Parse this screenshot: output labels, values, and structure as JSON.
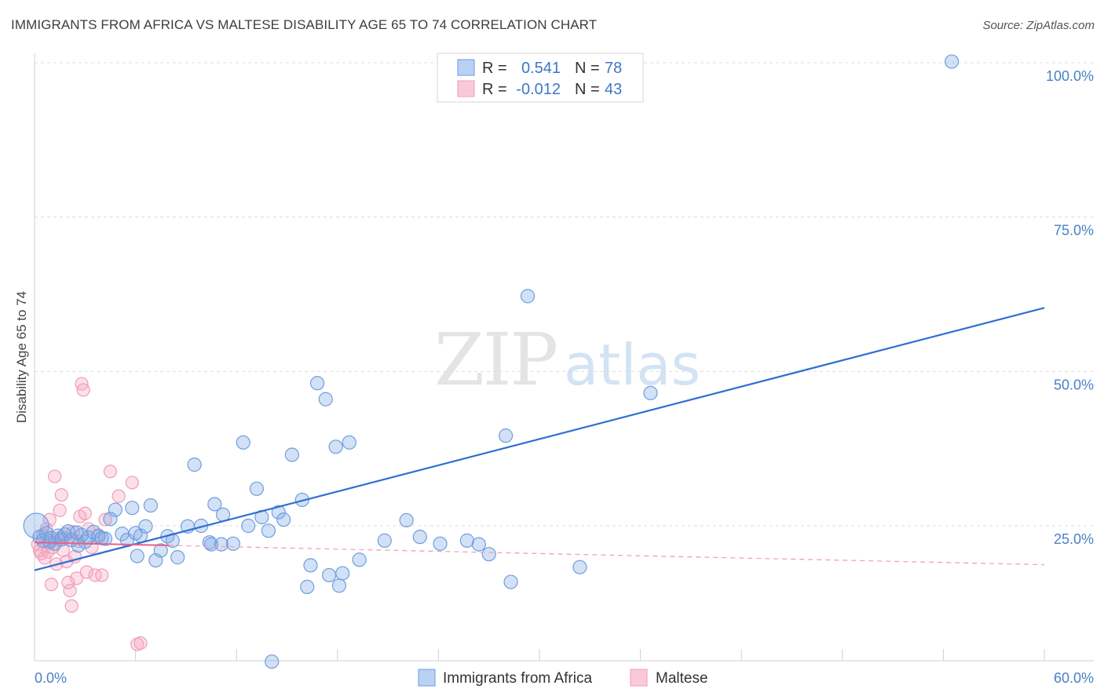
{
  "title": "IMMIGRANTS FROM AFRICA VS MALTESE DISABILITY AGE 65 TO 74 CORRELATION CHART",
  "source": "Source: ZipAtlas.com",
  "watermark": {
    "zip": "ZIP",
    "atlas": "atlas"
  },
  "colors": {
    "blue": "#7fa8e6",
    "blue_line": "#2f6fd1",
    "pink": "#f4a7c0",
    "pink_line": "#e8608a",
    "grid": "#d9d9d9"
  },
  "legend": {
    "rows": [
      {
        "r_label": "R =",
        "r_value": "0.541",
        "n_label": "N =",
        "n_value": "78"
      },
      {
        "r_label": "R =",
        "r_value": "-0.012",
        "n_label": "N =",
        "n_value": "43"
      }
    ]
  },
  "chart_data": {
    "type": "scatter",
    "title": "IMMIGRANTS FROM AFRICA VS MALTESE DISABILITY AGE 65 TO 74 CORRELATION CHART",
    "xlabel": "",
    "ylabel": "Disability Age 65 to 74",
    "xlim": [
      0,
      60
    ],
    "ylim": [
      0,
      105
    ],
    "x_tick_labels": [
      "0.0%",
      "60.0%"
    ],
    "y_ticks": [
      25,
      50,
      75,
      100
    ],
    "y_tick_labels": [
      "25.0%",
      "50.0%",
      "75.0%",
      "100.0%"
    ],
    "series": [
      {
        "name": "Immigrants from Africa",
        "color": "#7fa8e6",
        "trend": {
          "x": [
            0,
            60
          ],
          "y": [
            17.8,
            60.3
          ]
        },
        "points": [
          [
            0.1,
            25.0
          ],
          [
            0.3,
            23.2
          ],
          [
            0.5,
            22.6
          ],
          [
            0.7,
            23.8
          ],
          [
            0.9,
            22.5
          ],
          [
            1.0,
            23.0
          ],
          [
            1.2,
            22.1
          ],
          [
            1.4,
            23.4
          ],
          [
            1.6,
            22.8
          ],
          [
            1.8,
            23.6
          ],
          [
            2.0,
            24.1
          ],
          [
            2.2,
            22.7
          ],
          [
            2.5,
            23.9
          ],
          [
            2.8,
            23.5
          ],
          [
            3.0,
            22.4
          ],
          [
            3.2,
            23.1
          ],
          [
            3.5,
            24.0
          ],
          [
            3.8,
            23.3
          ],
          [
            4.2,
            22.9
          ],
          [
            4.5,
            26.1
          ],
          [
            4.8,
            27.6
          ],
          [
            5.2,
            23.7
          ],
          [
            5.5,
            22.7
          ],
          [
            5.8,
            27.9
          ],
          [
            6.1,
            20.1
          ],
          [
            6.3,
            23.4
          ],
          [
            6.6,
            24.9
          ],
          [
            6.9,
            28.3
          ],
          [
            7.2,
            19.4
          ],
          [
            7.5,
            21.0
          ],
          [
            7.9,
            23.3
          ],
          [
            8.2,
            22.6
          ],
          [
            8.5,
            19.9
          ],
          [
            9.1,
            24.9
          ],
          [
            9.5,
            34.9
          ],
          [
            9.9,
            25.0
          ],
          [
            10.5,
            22.0
          ],
          [
            10.7,
            28.5
          ],
          [
            11.2,
            26.8
          ],
          [
            11.8,
            22.1
          ],
          [
            12.4,
            38.5
          ],
          [
            12.7,
            25.0
          ],
          [
            13.2,
            31.0
          ],
          [
            13.5,
            26.4
          ],
          [
            13.9,
            24.2
          ],
          [
            14.5,
            27.2
          ],
          [
            14.8,
            26.0
          ],
          [
            15.3,
            36.5
          ],
          [
            15.9,
            29.2
          ],
          [
            16.4,
            18.6
          ],
          [
            16.8,
            48.1
          ],
          [
            17.3,
            45.5
          ],
          [
            17.5,
            17.0
          ],
          [
            17.9,
            37.8
          ],
          [
            18.3,
            17.3
          ],
          [
            18.7,
            38.5
          ],
          [
            19.3,
            19.5
          ],
          [
            20.8,
            22.6
          ],
          [
            22.1,
            25.9
          ],
          [
            22.9,
            23.2
          ],
          [
            24.1,
            22.1
          ],
          [
            25.7,
            22.6
          ],
          [
            26.4,
            22.0
          ],
          [
            27.0,
            20.4
          ],
          [
            28.0,
            39.6
          ],
          [
            28.3,
            15.9
          ],
          [
            29.3,
            62.2
          ],
          [
            32.4,
            18.3
          ],
          [
            36.6,
            46.5
          ],
          [
            54.5,
            100.2
          ],
          [
            14.1,
            3.0
          ],
          [
            10.4,
            22.3
          ],
          [
            16.2,
            15.1
          ],
          [
            18.1,
            15.3
          ],
          [
            11.1,
            22.0
          ],
          [
            2.6,
            21.8
          ],
          [
            4.0,
            23.0
          ],
          [
            6.0,
            23.8
          ]
        ]
      },
      {
        "name": "Maltese",
        "color": "#f4a7c0",
        "trend": {
          "x": [
            0,
            60
          ],
          "y": [
            22.3,
            18.7
          ]
        },
        "trend_solid_until": 8.0,
        "points": [
          [
            0.2,
            22.0
          ],
          [
            0.3,
            21.0
          ],
          [
            0.4,
            20.5
          ],
          [
            0.5,
            23.5
          ],
          [
            0.6,
            19.8
          ],
          [
            0.7,
            24.5
          ],
          [
            0.8,
            20.8
          ],
          [
            0.9,
            26.0
          ],
          [
            1.0,
            15.5
          ],
          [
            1.1,
            21.5
          ],
          [
            1.2,
            33.0
          ],
          [
            1.3,
            18.8
          ],
          [
            1.4,
            22.8
          ],
          [
            1.5,
            27.5
          ],
          [
            1.6,
            30.0
          ],
          [
            1.7,
            21.0
          ],
          [
            1.8,
            23.0
          ],
          [
            1.9,
            19.2
          ],
          [
            2.0,
            15.8
          ],
          [
            2.1,
            14.5
          ],
          [
            2.2,
            12.0
          ],
          [
            2.3,
            24.0
          ],
          [
            2.4,
            20.0
          ],
          [
            2.5,
            16.5
          ],
          [
            2.6,
            22.5
          ],
          [
            2.7,
            26.5
          ],
          [
            2.8,
            48.0
          ],
          [
            2.9,
            47.0
          ],
          [
            3.0,
            27.0
          ],
          [
            3.1,
            17.5
          ],
          [
            3.2,
            24.5
          ],
          [
            3.4,
            21.5
          ],
          [
            3.6,
            17.0
          ],
          [
            3.8,
            23.5
          ],
          [
            4.0,
            17.0
          ],
          [
            4.2,
            26.0
          ],
          [
            4.5,
            33.8
          ],
          [
            5.0,
            29.8
          ],
          [
            5.8,
            32.0
          ],
          [
            6.1,
            5.8
          ],
          [
            6.3,
            6.0
          ],
          [
            0.9,
            22.2
          ],
          [
            1.6,
            23.2
          ]
        ]
      }
    ]
  },
  "bottom_legend": [
    {
      "label": "Immigrants from Africa"
    },
    {
      "label": "Maltese"
    }
  ]
}
